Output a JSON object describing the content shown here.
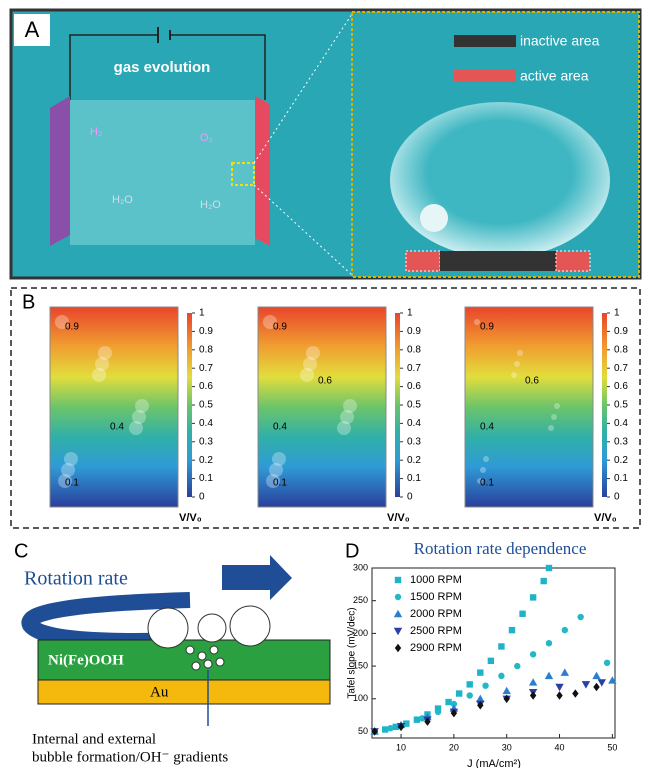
{
  "panel_a": {
    "label": "A",
    "caption": "gas evolution",
    "h2": "H₂",
    "o2": "O₂",
    "h2o_left": "H₂O",
    "h2o_right": "H₂O",
    "inactive": "inactive area",
    "active": "active area"
  },
  "panel_b": {
    "label": "B",
    "colorbar_ticks": [
      0,
      0.1,
      0.2,
      0.3,
      0.4,
      0.5,
      0.6,
      0.7,
      0.8,
      0.9,
      1
    ],
    "colorbar_title": "V/V₀",
    "plots": [
      {
        "contours": [
          "0.9",
          "0.4",
          "0.1"
        ]
      },
      {
        "contours": [
          "0.9",
          "0.6",
          "0.4",
          "0.1"
        ]
      },
      {
        "contours": [
          "0.9",
          "0.6",
          "0.4",
          "0.1"
        ]
      }
    ]
  },
  "panel_c": {
    "label": "C",
    "rotation": "Rotation rate",
    "layer": "Ni(Fe)OOH",
    "substrate": "Au",
    "note_1": "Internal and external",
    "note_2": "bubble formation/OH⁻ gradients"
  },
  "panel_d_label": "D",
  "chart_data": {
    "type": "scatter",
    "title": "Rotation rate dependence",
    "x_label": "J (mA/cm²)",
    "y_label": "Tafel slope (mV/dec)",
    "xlim": [
      4.5,
      50.5
    ],
    "ylim": [
      40,
      300
    ],
    "xticks": [
      10,
      20,
      30,
      40,
      50
    ],
    "yticks": [
      50,
      100,
      150,
      200,
      250,
      300
    ],
    "series": [
      {
        "name": "1000 RPM",
        "color": "#1fb3c8",
        "marker": "square",
        "x": [
          5,
          7,
          9,
          11,
          13,
          15,
          17,
          19,
          21,
          23,
          25,
          27,
          29,
          31,
          33,
          35,
          37,
          38
        ],
        "values": [
          50,
          53,
          57,
          62,
          68,
          76,
          85,
          95,
          108,
          122,
          140,
          158,
          180,
          205,
          230,
          255,
          280,
          300
        ]
      },
      {
        "name": "1500 RPM",
        "color": "#22b8c8",
        "marker": "circle",
        "x": [
          5,
          8,
          11,
          14,
          17,
          20,
          23,
          26,
          29,
          32,
          35,
          38,
          41,
          44,
          49
        ],
        "values": [
          50,
          55,
          62,
          70,
          80,
          92,
          105,
          120,
          135,
          150,
          168,
          185,
          205,
          225,
          155
        ]
      },
      {
        "name": "2000 RPM",
        "color": "#2a7fd0",
        "marker": "triangle",
        "x": [
          5,
          10,
          15,
          20,
          25,
          30,
          35,
          38,
          41,
          47,
          50
        ],
        "values": [
          50,
          60,
          72,
          85,
          100,
          112,
          125,
          135,
          140,
          135,
          128
        ]
      },
      {
        "name": "2500 RPM",
        "color": "#2b3fa8",
        "marker": "triangle-down",
        "x": [
          5,
          10,
          15,
          20,
          25,
          30,
          35,
          40,
          45,
          48
        ],
        "values": [
          50,
          58,
          68,
          80,
          92,
          100,
          110,
          118,
          122,
          125
        ]
      },
      {
        "name": "2900 RPM",
        "color": "#111111",
        "marker": "diamond",
        "x": [
          5,
          10,
          15,
          20,
          25,
          30,
          35,
          40,
          43,
          47
        ],
        "values": [
          50,
          57,
          65,
          78,
          90,
          100,
          105,
          105,
          108,
          118
        ]
      }
    ]
  }
}
